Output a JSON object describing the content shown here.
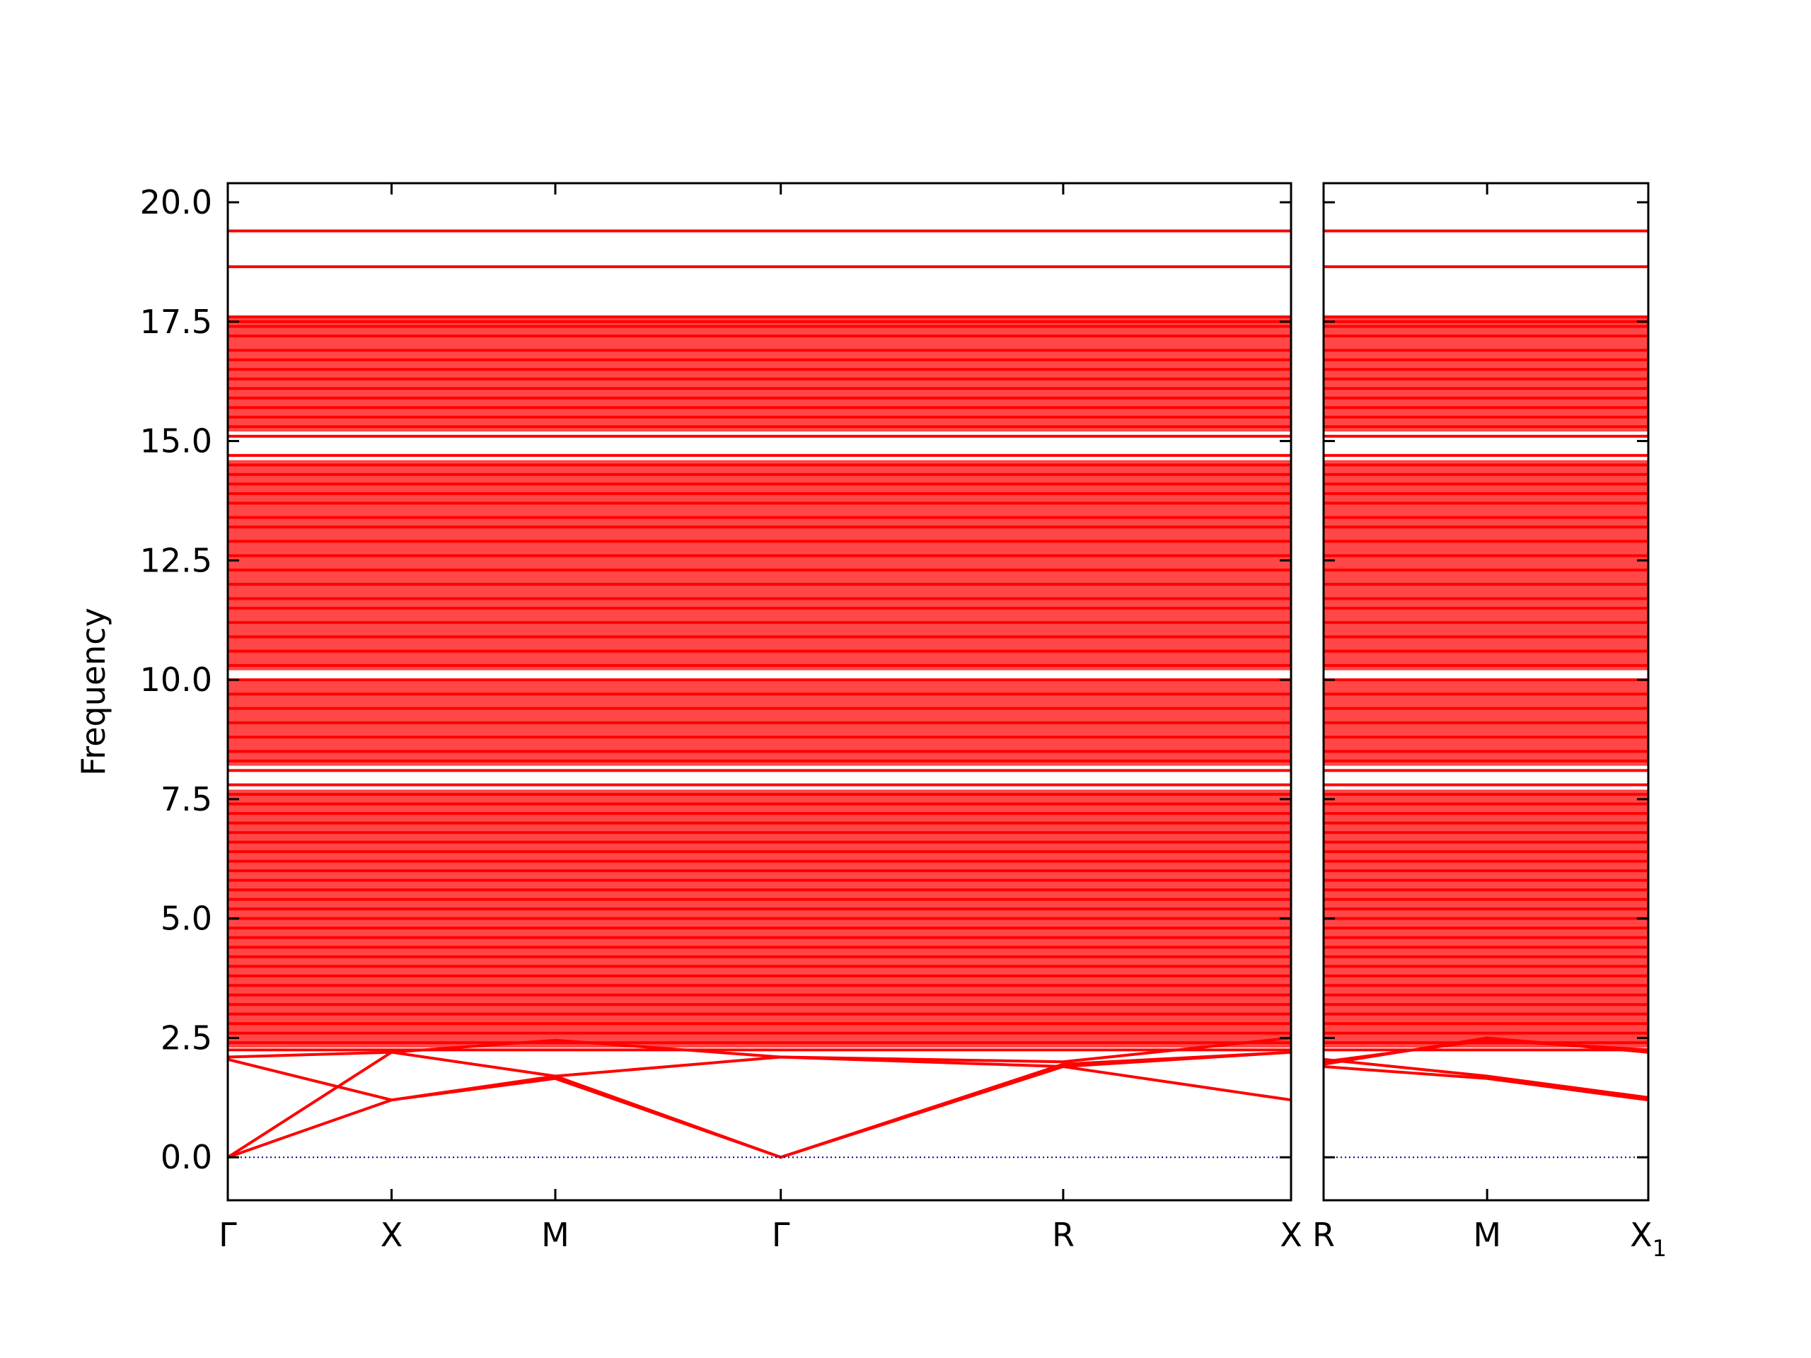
{
  "chart_data": {
    "type": "line",
    "title": "",
    "ylabel": "Frequency",
    "ylim": [
      -0.9,
      20.4
    ],
    "yticks": [
      "0.0",
      "2.5",
      "5.0",
      "7.5",
      "10.0",
      "12.5",
      "15.0",
      "17.5",
      "20.0"
    ],
    "ytick_values": [
      0.0,
      2.5,
      5.0,
      7.5,
      10.0,
      12.5,
      15.0,
      17.5,
      20.0
    ],
    "grid": false,
    "legend": "none",
    "colors": {
      "bands": "#ff0000",
      "zero_line": "#00008b",
      "axes": "#000000"
    },
    "panels": [
      {
        "name": "path-gamma-x-m-gamma-r-x",
        "x_range": [
          0,
          4.48
        ],
        "xticks": [
          {
            "label": "Γ",
            "x": 0.0
          },
          {
            "label": "X",
            "x": 0.69
          },
          {
            "label": "M",
            "x": 1.38
          },
          {
            "label": "Γ",
            "x": 2.33
          },
          {
            "label": "R",
            "x": 3.52
          },
          {
            "label": "X",
            "x": 4.48
          }
        ]
      },
      {
        "name": "path-r-m-x1",
        "x_range": [
          0,
          1.37
        ],
        "xticks": [
          {
            "label": "R",
            "x": 0.0
          },
          {
            "label": "M",
            "x": 0.69
          },
          {
            "label": "X",
            "sub": "1",
            "x": 1.37
          }
        ]
      }
    ],
    "flat_bands": [
      19.4,
      18.65,
      17.6,
      17.5,
      17.4,
      17.2,
      16.9,
      16.7,
      16.5,
      16.3,
      16.1,
      15.9,
      15.7,
      15.5,
      15.3,
      15.1,
      14.7,
      14.5,
      14.3,
      14.1,
      13.9,
      13.7,
      13.4,
      13.2,
      12.9,
      12.6,
      12.3,
      12.0,
      11.7,
      11.5,
      11.2,
      10.9,
      10.6,
      10.3,
      10.0,
      9.7,
      9.4,
      9.1,
      8.8,
      8.5,
      8.3,
      8.1,
      7.8,
      7.6,
      7.4,
      7.2,
      7.0,
      6.8,
      6.6,
      6.4,
      6.2,
      6.0,
      5.8,
      5.6,
      5.4,
      5.2,
      5.0,
      4.8,
      4.6,
      4.4,
      4.2,
      4.0,
      3.8,
      3.6,
      3.4,
      3.2,
      3.0,
      2.8,
      2.6,
      2.4,
      2.25
    ],
    "acoustic_bands_panel1": [
      {
        "x": [
          0.0,
          0.69,
          1.38,
          2.33,
          3.52,
          4.48
        ],
        "y": [
          0.0,
          1.2,
          1.65,
          0.0,
          1.9,
          1.2
        ]
      },
      {
        "x": [
          0.0,
          0.69,
          1.38,
          2.33,
          3.52,
          4.48
        ],
        "y": [
          0.0,
          2.2,
          1.7,
          0.0,
          1.95,
          2.2
        ]
      },
      {
        "x": [
          0.0,
          0.69,
          1.38,
          2.33,
          3.52,
          4.48
        ],
        "y": [
          2.05,
          1.2,
          1.7,
          2.1,
          2.0,
          2.5
        ]
      },
      {
        "x": [
          0.0,
          0.69,
          1.38,
          2.33,
          3.52,
          4.48
        ],
        "y": [
          2.1,
          2.2,
          2.45,
          2.1,
          1.9,
          2.2
        ]
      }
    ],
    "acoustic_bands_panel2": [
      {
        "x": [
          0.0,
          0.69,
          1.37
        ],
        "y": [
          1.9,
          1.65,
          1.2
        ]
      },
      {
        "x": [
          0.0,
          0.69,
          1.37
        ],
        "y": [
          2.05,
          1.7,
          1.25
        ]
      },
      {
        "x": [
          0.0,
          0.69,
          1.37
        ],
        "y": [
          1.95,
          2.5,
          2.2
        ]
      },
      {
        "x": [
          0.0,
          0.69,
          1.37
        ],
        "y": [
          2.0,
          2.45,
          2.25
        ]
      }
    ]
  }
}
